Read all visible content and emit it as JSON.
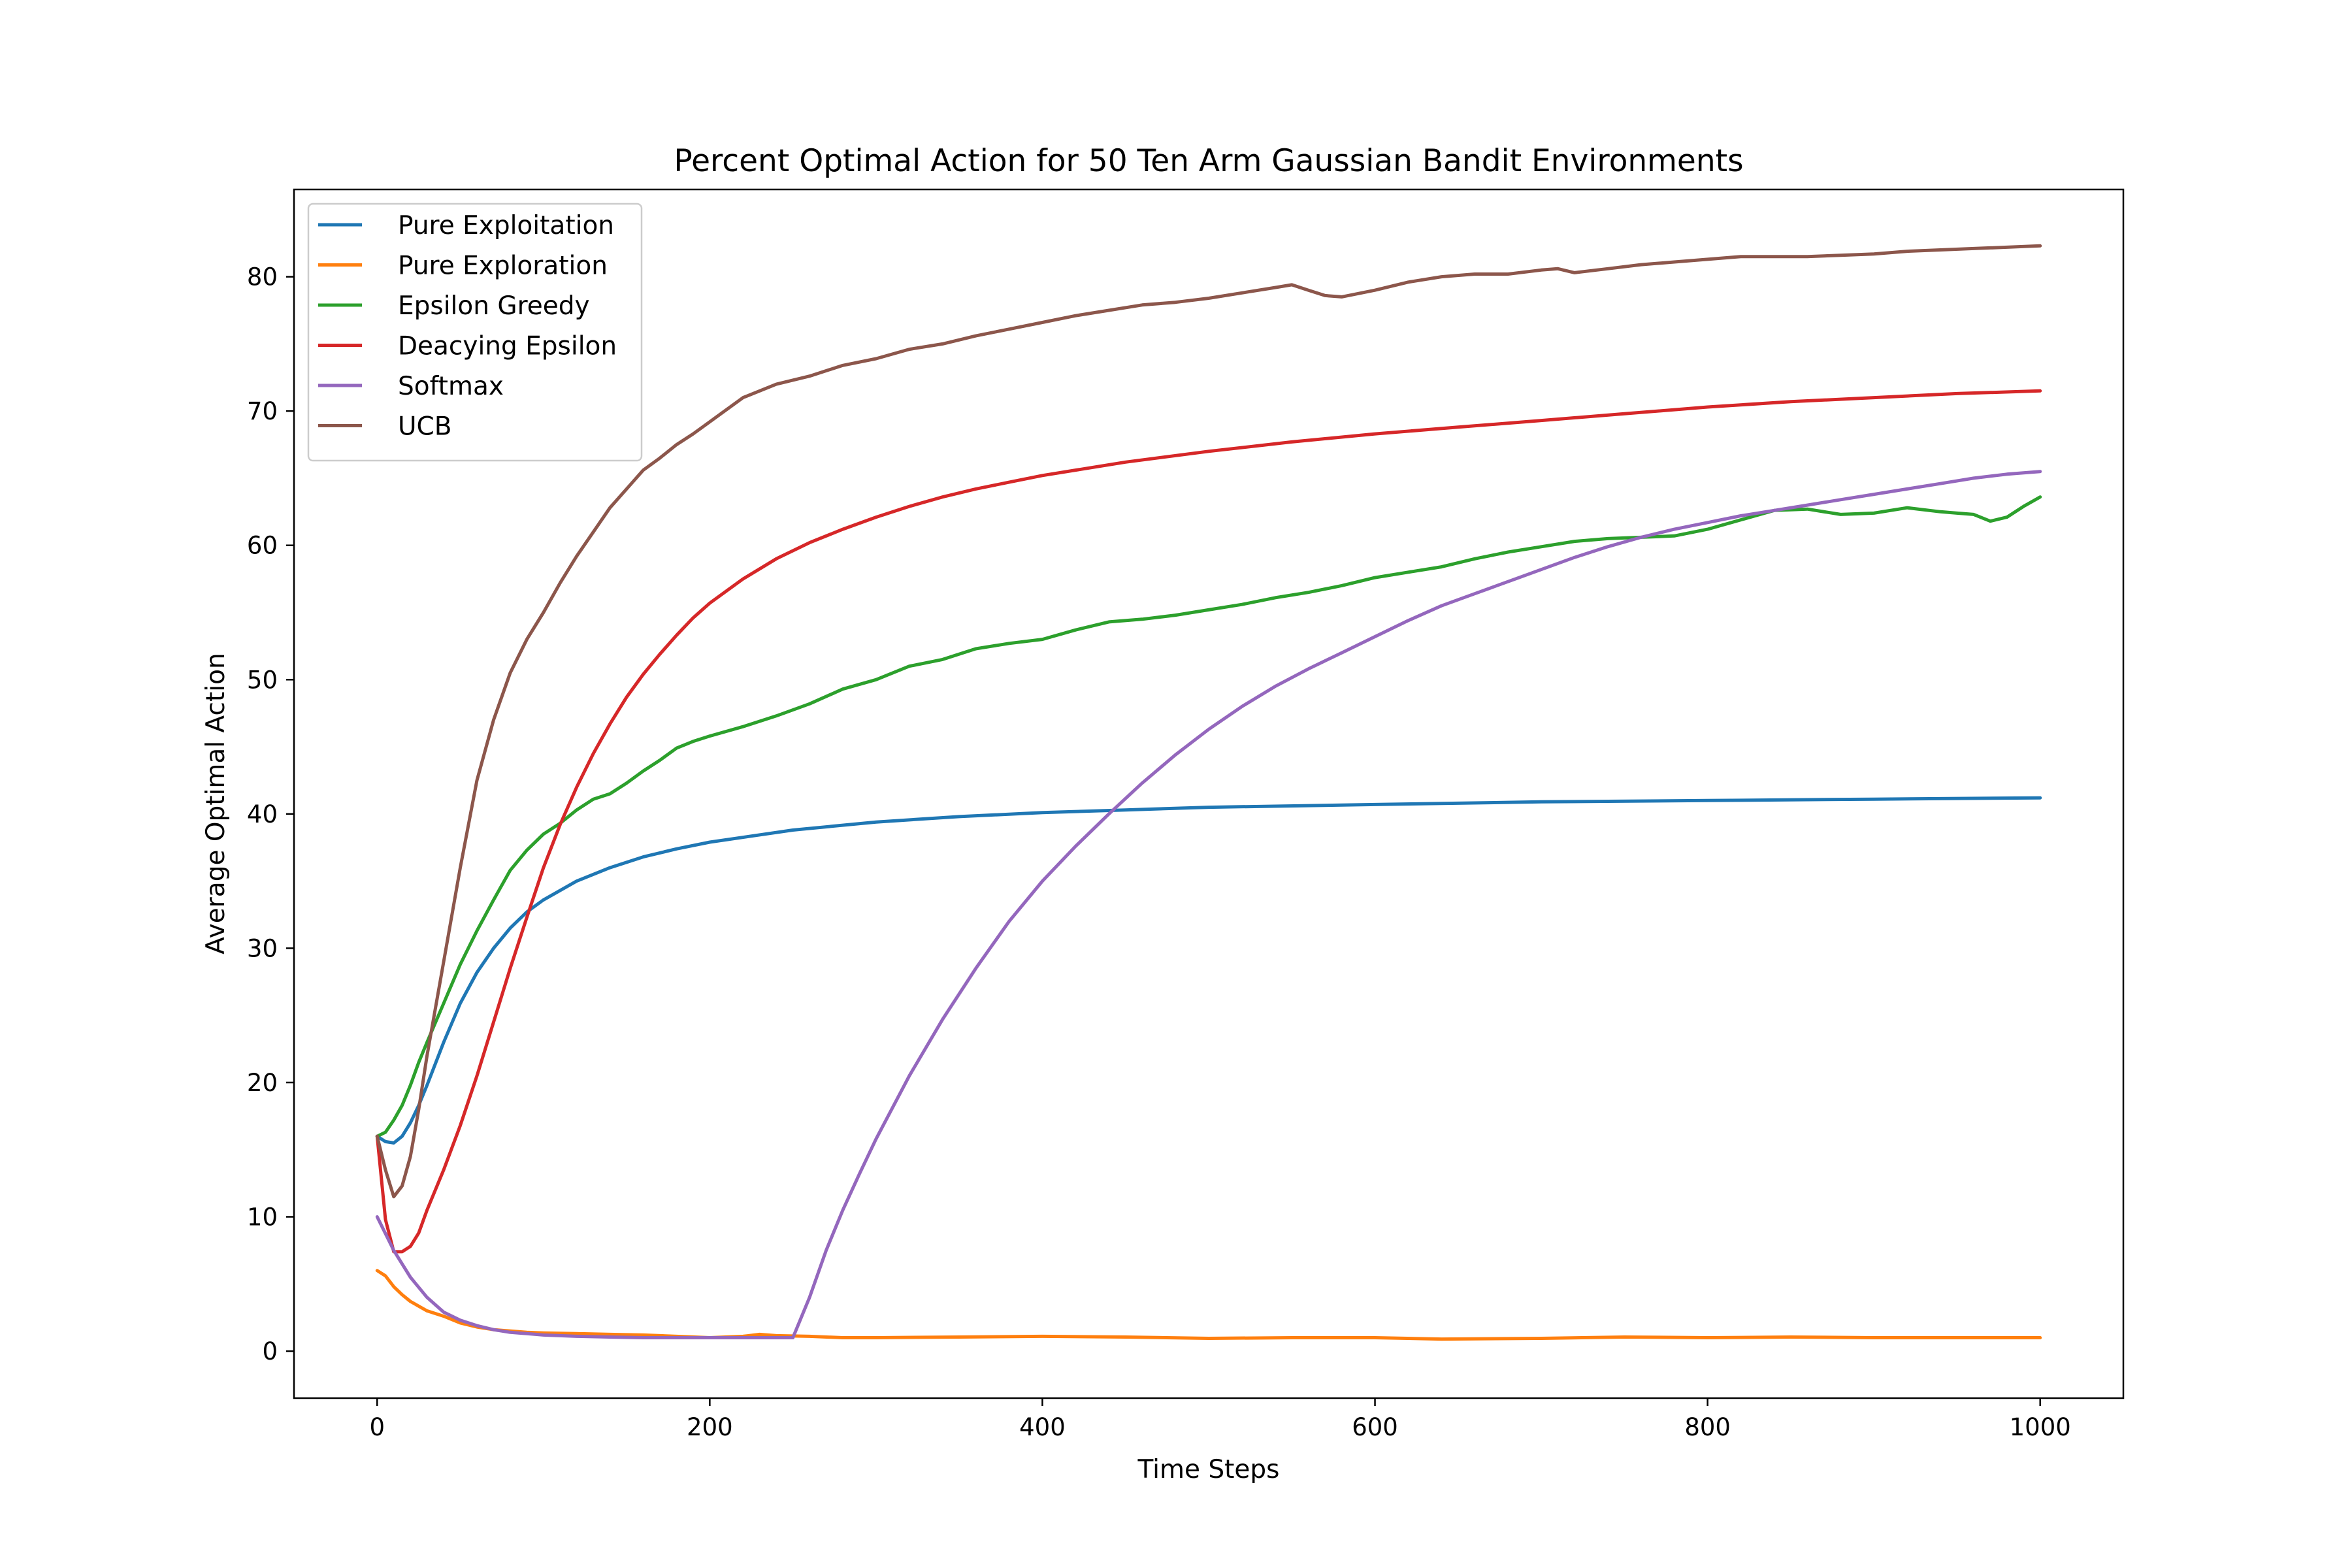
{
  "chart_data": {
    "type": "line",
    "title": "Percent Optimal Action for 50 Ten Arm Gaussian Bandit Environments",
    "xlabel": "Time Steps",
    "ylabel": "Average Optimal Action",
    "xlim": [
      -50,
      1050
    ],
    "ylim": [
      -3.5,
      86.5
    ],
    "xticks": [
      0,
      200,
      400,
      600,
      800,
      1000
    ],
    "yticks": [
      0,
      10,
      20,
      30,
      40,
      50,
      60,
      70,
      80
    ],
    "grid": false,
    "legend_position": "upper-left",
    "series": [
      {
        "name": "Pure Exploitation",
        "color": "#1f77b4",
        "x": [
          0,
          5,
          10,
          15,
          20,
          25,
          30,
          40,
          50,
          60,
          70,
          80,
          90,
          100,
          120,
          140,
          160,
          180,
          200,
          250,
          300,
          350,
          400,
          450,
          500,
          600,
          700,
          800,
          900,
          1000
        ],
        "y": [
          16,
          15.6,
          15.5,
          16.0,
          17.0,
          18.3,
          19.8,
          23.0,
          25.9,
          28.2,
          30.0,
          31.5,
          32.7,
          33.6,
          35.0,
          36.0,
          36.8,
          37.4,
          37.9,
          38.8,
          39.4,
          39.8,
          40.1,
          40.3,
          40.5,
          40.7,
          40.9,
          41.0,
          41.1,
          41.2
        ]
      },
      {
        "name": "Pure Exploration",
        "color": "#ff7f0e",
        "x": [
          0,
          5,
          10,
          15,
          20,
          30,
          40,
          50,
          60,
          70,
          80,
          90,
          100,
          120,
          140,
          160,
          180,
          200,
          220,
          230,
          240,
          260,
          280,
          300,
          350,
          400,
          450,
          500,
          550,
          600,
          640,
          700,
          750,
          800,
          850,
          900,
          950,
          1000
        ],
        "y": [
          6.0,
          5.6,
          4.8,
          4.2,
          3.7,
          3.0,
          2.6,
          2.1,
          1.8,
          1.6,
          1.5,
          1.4,
          1.35,
          1.3,
          1.25,
          1.2,
          1.1,
          1.0,
          1.1,
          1.25,
          1.15,
          1.1,
          1.0,
          1.0,
          1.05,
          1.1,
          1.05,
          0.95,
          1.0,
          1.0,
          0.9,
          0.95,
          1.05,
          1.0,
          1.05,
          1.0,
          1.0,
          1.0
        ]
      },
      {
        "name": "Epsilon Greedy",
        "color": "#2ca02c",
        "x": [
          0,
          5,
          10,
          15,
          20,
          25,
          30,
          40,
          50,
          60,
          70,
          80,
          90,
          100,
          110,
          120,
          130,
          140,
          150,
          160,
          170,
          180,
          190,
          200,
          220,
          240,
          260,
          280,
          300,
          320,
          340,
          360,
          380,
          400,
          420,
          440,
          460,
          480,
          500,
          520,
          540,
          560,
          580,
          600,
          620,
          640,
          660,
          680,
          700,
          720,
          740,
          760,
          780,
          800,
          820,
          840,
          860,
          880,
          900,
          920,
          940,
          950,
          960,
          970,
          980,
          990,
          1000
        ],
        "y": [
          16,
          16.3,
          17.2,
          18.3,
          19.8,
          21.5,
          23.0,
          25.9,
          28.8,
          31.3,
          33.6,
          35.8,
          37.3,
          38.5,
          39.3,
          40.3,
          41.1,
          41.5,
          42.3,
          43.2,
          44.0,
          44.9,
          45.4,
          45.8,
          46.5,
          47.3,
          48.2,
          49.3,
          50.0,
          51.0,
          51.5,
          52.3,
          52.7,
          53.0,
          53.7,
          54.3,
          54.5,
          54.8,
          55.2,
          55.6,
          56.1,
          56.5,
          57.0,
          57.6,
          58.0,
          58.4,
          59.0,
          59.5,
          59.9,
          60.3,
          60.5,
          60.6,
          60.7,
          61.2,
          61.9,
          62.6,
          62.7,
          62.3,
          62.4,
          62.8,
          62.5,
          62.4,
          62.3,
          61.8,
          62.1,
          62.9,
          63.6
        ]
      },
      {
        "name": "Deacying Epsilon",
        "color": "#d62728",
        "x": [
          0,
          5,
          10,
          15,
          20,
          25,
          30,
          40,
          50,
          60,
          70,
          80,
          90,
          100,
          110,
          120,
          130,
          140,
          150,
          160,
          170,
          180,
          190,
          200,
          220,
          240,
          260,
          280,
          300,
          320,
          340,
          360,
          380,
          400,
          450,
          500,
          550,
          600,
          650,
          700,
          750,
          800,
          850,
          900,
          950,
          1000
        ],
        "y": [
          16,
          9.8,
          7.4,
          7.4,
          7.8,
          8.8,
          10.5,
          13.5,
          16.8,
          20.5,
          24.5,
          28.5,
          32.3,
          36.0,
          39.2,
          42.0,
          44.5,
          46.7,
          48.7,
          50.4,
          51.9,
          53.3,
          54.6,
          55.7,
          57.5,
          59.0,
          60.2,
          61.2,
          62.1,
          62.9,
          63.6,
          64.2,
          64.7,
          65.2,
          66.2,
          67.0,
          67.7,
          68.3,
          68.8,
          69.3,
          69.8,
          70.3,
          70.7,
          71.0,
          71.3,
          71.5
        ]
      },
      {
        "name": "Softmax",
        "color": "#9467bd",
        "x": [
          0,
          10,
          20,
          30,
          40,
          50,
          60,
          70,
          80,
          90,
          100,
          120,
          140,
          160,
          180,
          200,
          220,
          240,
          250,
          260,
          270,
          280,
          290,
          300,
          320,
          340,
          360,
          380,
          400,
          420,
          440,
          460,
          480,
          500,
          520,
          540,
          560,
          580,
          600,
          620,
          640,
          660,
          680,
          700,
          720,
          740,
          760,
          780,
          800,
          820,
          840,
          860,
          880,
          900,
          920,
          940,
          960,
          980,
          1000
        ],
        "y": [
          10,
          7.5,
          5.5,
          4.0,
          2.9,
          2.3,
          1.9,
          1.6,
          1.4,
          1.3,
          1.2,
          1.1,
          1.05,
          1.0,
          1.0,
          1.0,
          1.0,
          1.0,
          1.0,
          4.0,
          7.5,
          10.5,
          13.2,
          15.8,
          20.5,
          24.7,
          28.5,
          32.0,
          35.0,
          37.6,
          40.0,
          42.3,
          44.4,
          46.3,
          48.0,
          49.5,
          50.8,
          52.0,
          53.2,
          54.4,
          55.5,
          56.4,
          57.3,
          58.2,
          59.1,
          59.9,
          60.6,
          61.2,
          61.7,
          62.2,
          62.6,
          63.0,
          63.4,
          63.8,
          64.2,
          64.6,
          65.0,
          65.3,
          65.5
        ]
      },
      {
        "name": "UCB",
        "color": "#8c564b",
        "x": [
          0,
          5,
          10,
          15,
          20,
          25,
          30,
          40,
          50,
          60,
          70,
          80,
          90,
          100,
          110,
          120,
          130,
          140,
          150,
          160,
          170,
          180,
          190,
          200,
          220,
          240,
          260,
          280,
          300,
          320,
          340,
          360,
          380,
          400,
          420,
          440,
          460,
          480,
          500,
          520,
          540,
          550,
          560,
          570,
          580,
          600,
          620,
          640,
          660,
          680,
          700,
          710,
          720,
          740,
          760,
          780,
          800,
          820,
          840,
          860,
          880,
          900,
          920,
          940,
          960,
          980,
          1000
        ],
        "y": [
          16,
          13.5,
          11.5,
          12.3,
          14.5,
          18.0,
          22.0,
          29.0,
          36.0,
          42.5,
          47.0,
          50.5,
          53.0,
          55.0,
          57.2,
          59.2,
          61.0,
          62.8,
          64.2,
          65.6,
          66.5,
          67.5,
          68.3,
          69.2,
          71.0,
          72.0,
          72.6,
          73.4,
          73.9,
          74.6,
          75.0,
          75.6,
          76.1,
          76.6,
          77.1,
          77.5,
          77.9,
          78.1,
          78.4,
          78.8,
          79.2,
          79.4,
          79.0,
          78.6,
          78.5,
          79.0,
          79.6,
          80.0,
          80.2,
          80.2,
          80.5,
          80.6,
          80.3,
          80.6,
          80.9,
          81.1,
          81.3,
          81.5,
          81.5,
          81.5,
          81.6,
          81.7,
          81.9,
          82.0,
          82.1,
          82.2,
          82.3
        ]
      }
    ]
  }
}
